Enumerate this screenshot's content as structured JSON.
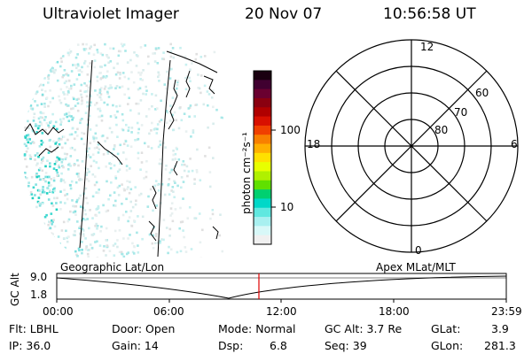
{
  "header": {
    "instrument": "Ultraviolet Imager",
    "date": "20 Nov 07",
    "time": "10:56:58 UT"
  },
  "colorbar": {
    "label": "photon cm⁻²s⁻¹",
    "ticks": [
      "100",
      "10"
    ],
    "colors": [
      "#1a0010",
      "#400030",
      "#6a0030",
      "#8a0010",
      "#b00000",
      "#d81000",
      "#f04000",
      "#f88000",
      "#ffb000",
      "#ffe000",
      "#e8ff00",
      "#b0f000",
      "#60e000",
      "#00d070",
      "#00d8c8",
      "#60e8e0",
      "#a8f0f0",
      "#d8f8f8",
      "#f0f0f0"
    ]
  },
  "polar_plot": {
    "mlt_labels": {
      "top": "12",
      "bottom": "0",
      "left": "18",
      "right": "6"
    },
    "lat_labels": [
      "60",
      "70",
      "80"
    ]
  },
  "orbit_panel": {
    "left_label": "Geographic Lat/Lon",
    "right_label": "Apex MLat/MLT",
    "axis_label": "GC Alt",
    "y_ticks": [
      "9.0",
      "1.8"
    ],
    "x_ticks": [
      "00:00",
      "06:00",
      "12:00",
      "18:00",
      "23:59"
    ],
    "marker_color": "#e00000"
  },
  "info": {
    "flt": "Flt: LBHL",
    "door": "Door: Open",
    "mode": "Mode: Normal",
    "gc_alt": "GC Alt: 3.7 Re",
    "glat_label": "GLat:",
    "glat_value": "3.9",
    "ip": "IP: 36.0",
    "gain": "Gain: 14",
    "dsp_label": "Dsp:",
    "dsp_value": "6.8",
    "seq": "Seq: 39",
    "glon_label": "GLon:",
    "glon_value": "281.3"
  }
}
